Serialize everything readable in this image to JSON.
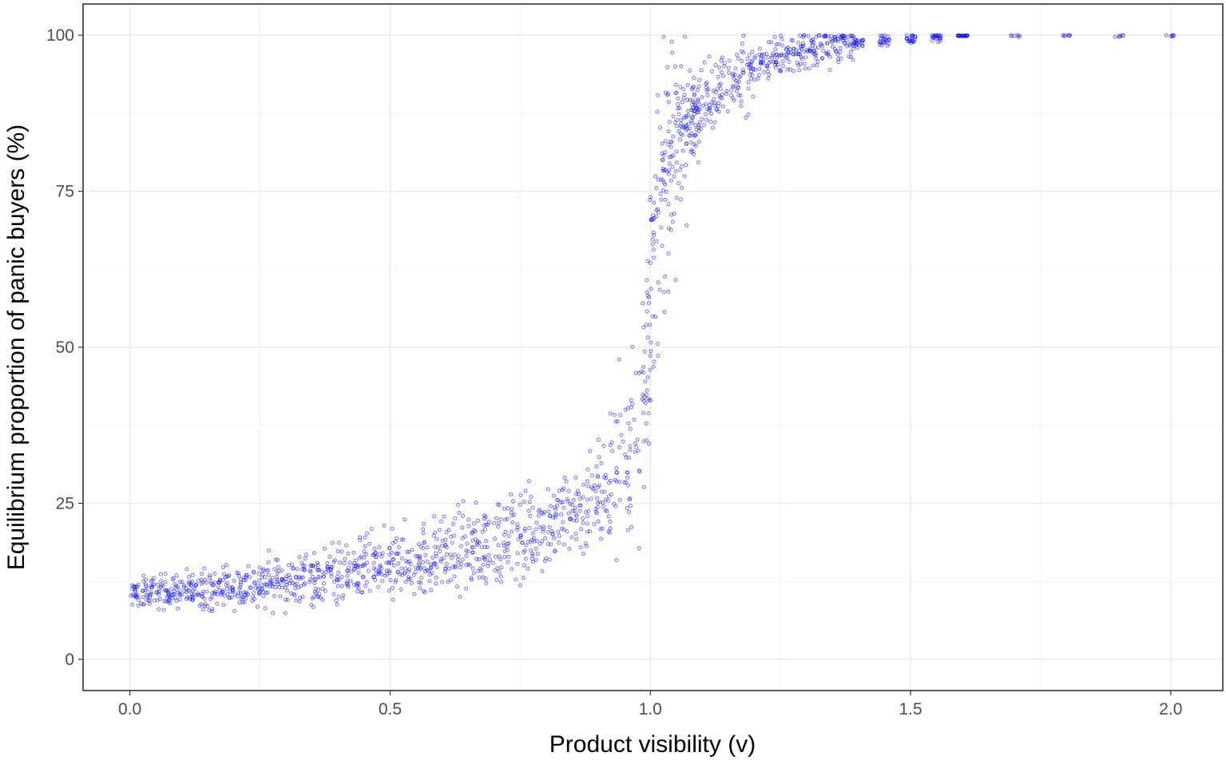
{
  "chart_data": {
    "type": "scatter",
    "title": "",
    "xlabel": "Product visibility (v)",
    "ylabel": "Equilibrium proportion of panic buyers (%)",
    "xlim": [
      -0.09,
      2.1
    ],
    "ylim": [
      -5,
      105
    ],
    "x_ticks": [
      0.0,
      0.5,
      1.0,
      1.5,
      2.0
    ],
    "x_tick_labels": [
      "0.0",
      "0.5",
      "1.0",
      "1.5",
      "2.0"
    ],
    "y_ticks": [
      0,
      25,
      50,
      75,
      100
    ],
    "y_tick_labels": [
      "0",
      "25",
      "50",
      "75",
      "100"
    ],
    "grid": true,
    "point_color": "#0000ff",
    "series": [
      {
        "x": [
          0.01,
          0.03,
          0.05,
          0.07,
          0.09,
          0.11,
          0.13,
          0.15,
          0.17,
          0.19,
          0.21,
          0.23,
          0.25,
          0.27,
          0.29,
          0.31,
          0.33,
          0.35,
          0.37,
          0.39,
          0.41,
          0.43,
          0.45,
          0.47,
          0.49,
          0.51,
          0.53,
          0.55,
          0.57,
          0.59,
          0.61,
          0.63,
          0.65,
          0.67,
          0.69,
          0.71,
          0.73,
          0.75,
          0.77,
          0.79,
          0.81,
          0.83,
          0.85,
          0.87,
          0.89,
          0.91,
          0.93,
          0.95,
          0.97,
          0.99,
          1.0,
          1.01,
          1.02,
          1.03,
          1.04,
          1.05,
          1.06,
          1.07,
          1.08,
          1.09,
          1.1,
          1.12,
          1.14,
          1.16,
          1.18,
          1.2,
          1.22,
          1.24,
          1.26,
          1.28,
          1.3,
          1.32,
          1.34,
          1.36,
          1.38,
          1.4,
          1.45,
          1.5,
          1.55,
          1.6,
          1.7,
          1.8,
          1.9,
          2.0
        ],
        "y": [
          10.5,
          10.7,
          10.8,
          10.9,
          11.0,
          11.1,
          11.2,
          11.3,
          11.4,
          11.5,
          11.7,
          11.9,
          12.1,
          12.3,
          12.5,
          12.7,
          12.9,
          13.1,
          13.3,
          13.5,
          13.7,
          14.0,
          14.3,
          14.6,
          14.9,
          15.2,
          15.5,
          15.8,
          16.1,
          16.4,
          16.8,
          17.2,
          17.6,
          18.0,
          18.4,
          18.9,
          19.4,
          20.0,
          20.6,
          21.3,
          22.0,
          22.8,
          23.7,
          24.7,
          25.8,
          27.2,
          28.9,
          31.2,
          35.0,
          45.0,
          55.0,
          65.0,
          72.0,
          78.0,
          81.5,
          84.0,
          85.5,
          86.8,
          87.8,
          88.6,
          89.4,
          90.8,
          92.0,
          93.0,
          93.9,
          94.7,
          95.4,
          96.0,
          96.6,
          97.1,
          97.5,
          97.9,
          98.2,
          98.5,
          98.7,
          98.9,
          99.3,
          99.6,
          99.8,
          99.9,
          100.0,
          100.0,
          100.0,
          100.0
        ]
      }
    ]
  }
}
